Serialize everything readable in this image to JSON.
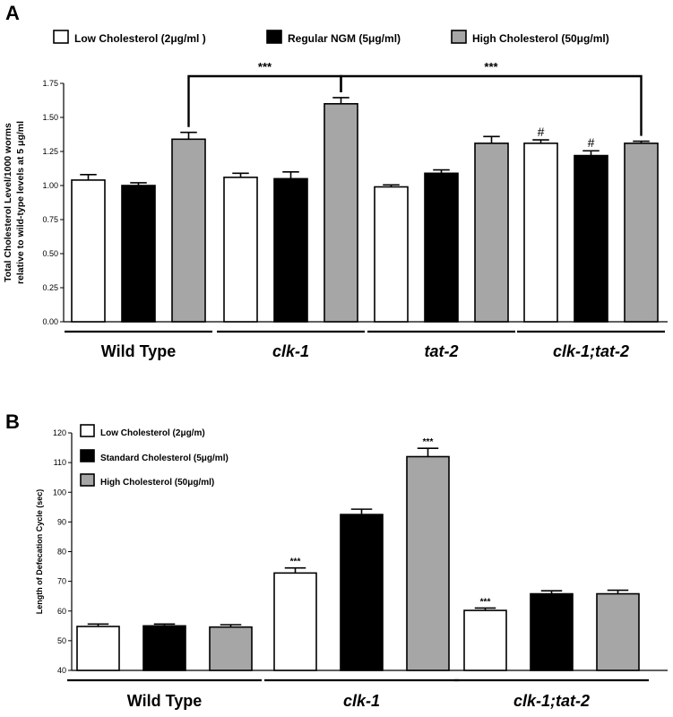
{
  "chart_data": [
    {
      "panel": "A",
      "type": "bar",
      "title": "",
      "ylabel_line1": "Total Cholesterol Level/1000 worms",
      "ylabel_line2": "relative to wild-type levels at 5 μg/ml",
      "ylim": [
        0,
        1.75
      ],
      "yticks": [
        "0.00",
        "0.25",
        "0.50",
        "0.75",
        "1.00",
        "1.25",
        "1.50",
        "1.75"
      ],
      "categories": [
        "Wild Type",
        "clk-1",
        "tat-2",
        "clk-1;tat-2"
      ],
      "series": [
        {
          "name": "Low Cholesterol (2μg/ml )",
          "color": "#ffffff",
          "values": [
            1.04,
            1.06,
            0.99,
            1.31
          ],
          "errors": [
            0.04,
            0.03,
            0.015,
            0.025
          ]
        },
        {
          "name": "Regular NGM (5μg/ml)",
          "color": "#000000",
          "values": [
            1.0,
            1.05,
            1.09,
            1.22
          ],
          "errors": [
            0.02,
            0.05,
            0.025,
            0.035
          ]
        },
        {
          "name": "High Cholesterol (50μg/ml)",
          "color": "#a6a6a6",
          "values": [
            1.34,
            1.6,
            1.31,
            1.31
          ],
          "errors": [
            0.05,
            0.045,
            0.05,
            0.015
          ]
        }
      ],
      "annotations": [
        {
          "group": 3,
          "series": 0,
          "text": "#"
        },
        {
          "group": 3,
          "series": 1,
          "text": "#"
        }
      ],
      "brackets": [
        {
          "from": [
            0,
            2
          ],
          "to": [
            1,
            2
          ],
          "text": "***"
        },
        {
          "from": [
            1,
            2
          ],
          "to": [
            3,
            2
          ],
          "text": "***"
        }
      ]
    },
    {
      "panel": "B",
      "type": "bar",
      "title": "",
      "ylabel": "Length of Defecation Cycle (sec)",
      "ylim": [
        40,
        120
      ],
      "yticks": [
        "40",
        "50",
        "60",
        "70",
        "80",
        "90",
        "100",
        "110",
        "120"
      ],
      "categories": [
        "Wild Type",
        "clk-1",
        "clk-1;tat-2"
      ],
      "series": [
        {
          "name": "Low Cholesterol (2μg/m)",
          "color": "#ffffff",
          "values": [
            54.8,
            72.8,
            60.2
          ],
          "errors": [
            0.8,
            1.7,
            0.8
          ]
        },
        {
          "name": "Standard Cholesterol (5μg/ml)",
          "color": "#000000",
          "values": [
            55.0,
            92.5,
            65.8
          ],
          "errors": [
            0.6,
            1.8,
            1.0
          ]
        },
        {
          "name": "High Cholesterol (50μg/ml)",
          "color": "#a6a6a6",
          "values": [
            54.6,
            112.0,
            65.8
          ],
          "errors": [
            0.8,
            2.8,
            1.2
          ]
        }
      ],
      "annotations": [
        {
          "group": 1,
          "series": 0,
          "text": "***"
        },
        {
          "group": 1,
          "series": 2,
          "text": "***"
        },
        {
          "group": 2,
          "series": 0,
          "text": "***"
        }
      ]
    }
  ]
}
